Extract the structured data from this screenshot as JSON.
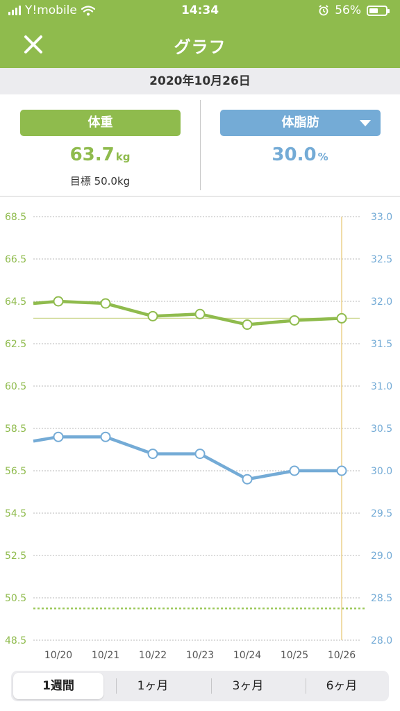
{
  "status_bar": {
    "carrier": "Y!mobile",
    "time": "14:34",
    "battery": "56%"
  },
  "nav": {
    "title": "グラフ"
  },
  "date": "2020年10月26日",
  "summary": {
    "weight": {
      "label": "体重",
      "value": "63.7",
      "unit": "kg",
      "target": "目標 50.0kg"
    },
    "fat": {
      "label": "体脂肪",
      "value": "30.0",
      "unit": "%"
    }
  },
  "chart_data": {
    "type": "line",
    "categories": [
      "10/20",
      "10/21",
      "10/22",
      "10/23",
      "10/24",
      "10/25",
      "10/26"
    ],
    "left_axis": {
      "ticks": [
        "68.5",
        "66.5",
        "64.5",
        "62.5",
        "60.5",
        "58.5",
        "56.5",
        "54.5",
        "52.5",
        "50.5",
        "48.5"
      ],
      "ylim": [
        48.5,
        68.5
      ]
    },
    "right_axis": {
      "ticks": [
        "33.0",
        "32.5",
        "32.0",
        "31.5",
        "31.0",
        "30.5",
        "30.0",
        "29.5",
        "29.0",
        "28.5",
        "28.0"
      ],
      "ylim": [
        28.0,
        33.0
      ]
    },
    "series": [
      {
        "axis": "left",
        "color": "#8fbb4d",
        "leading": 64.4,
        "values": [
          64.5,
          64.4,
          63.8,
          63.9,
          63.4,
          63.6,
          63.7
        ]
      },
      {
        "axis": "right",
        "color": "#74abd6",
        "leading": 30.35,
        "values": [
          30.4,
          30.4,
          30.2,
          30.2,
          29.9,
          30.0,
          30.0
        ]
      }
    ],
    "reference_line": 63.7,
    "target_line": 50.0,
    "selected_index": 6
  },
  "segments": {
    "items": [
      "1週間",
      "1ヶ月",
      "3ヶ月",
      "6ヶ月"
    ],
    "active": 0
  }
}
